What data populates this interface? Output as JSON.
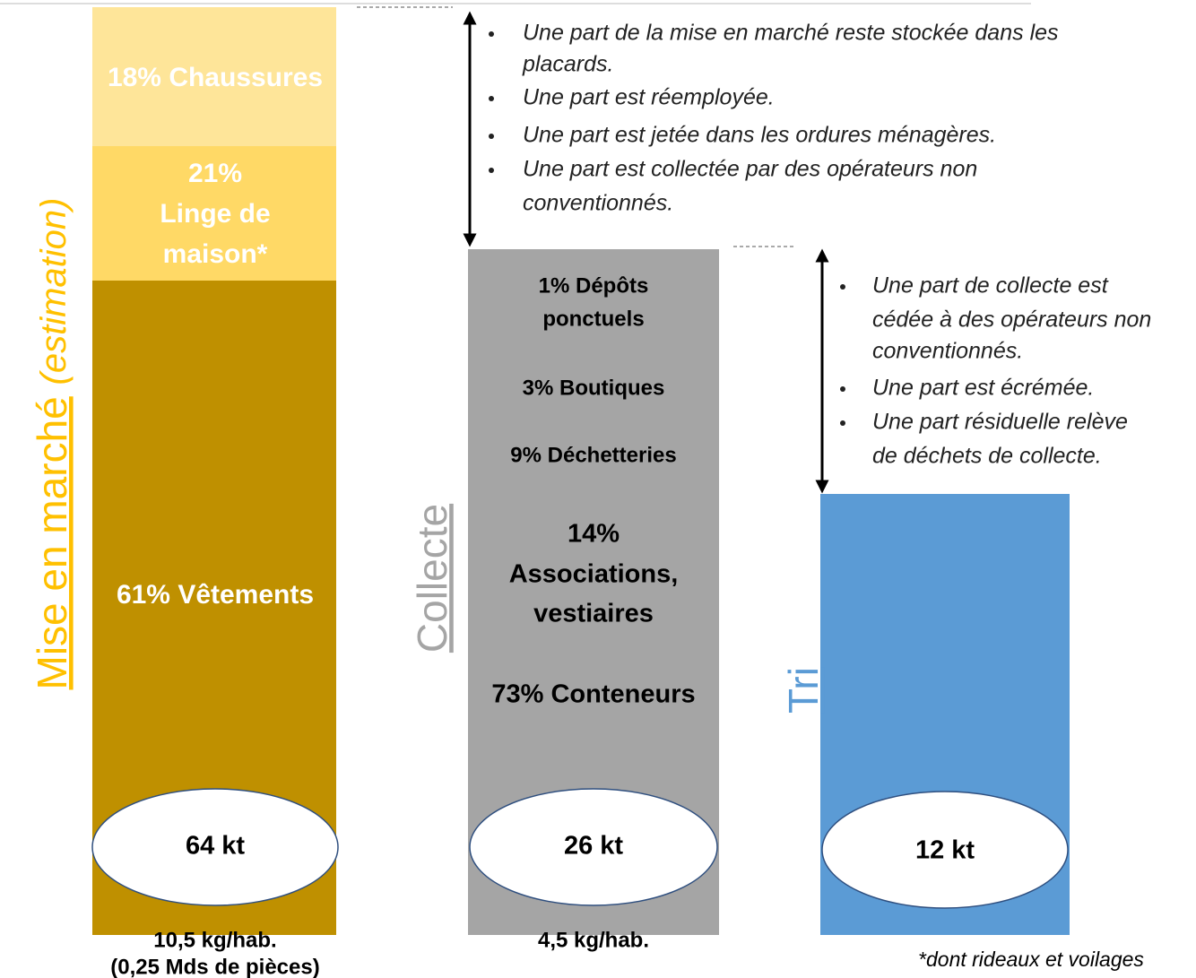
{
  "columns": [
    {
      "title": "Mise en marché",
      "subtitle": "(estimation)",
      "segments": [
        [
          "18% Chaussures"
        ],
        [
          "21%",
          "Linge de",
          "maison*"
        ],
        [
          "61% Vêtements"
        ]
      ],
      "total": "64 kt",
      "per_capita": [
        "10,5 kg/hab.",
        "(0,25 Mds de pièces)"
      ]
    },
    {
      "title": "Collecte",
      "segments": [
        [
          "1% Dépôts",
          "ponctuels"
        ],
        [
          "3% Boutiques"
        ],
        [
          "9% Déchetteries"
        ],
        [
          "14%",
          "Associations,",
          "vestiaires"
        ],
        [
          "73% Conteneurs"
        ]
      ],
      "total": "26 kt",
      "per_capita": [
        "4,5 kg/hab."
      ]
    },
    {
      "title": "Tri",
      "total": "12 kt"
    }
  ],
  "notes": [
    [
      [
        "Une part de la mise en marché reste stockée dans les",
        "placards."
      ],
      [
        "Une part est réemployée."
      ],
      [
        "Une part est jetée dans les ordures ménagères."
      ],
      [
        "Une part est collectée par des opérateurs non",
        "conventionnés."
      ]
    ],
    [
      [
        "Une part de collecte est",
        "cédée à des opérateurs non",
        "conventionnés."
      ],
      [
        "Une part est écrémée."
      ],
      [
        "Une part résiduelle relève",
        "de déchets de collecte."
      ]
    ]
  ],
  "footnote": "*dont rideaux et voilages"
}
